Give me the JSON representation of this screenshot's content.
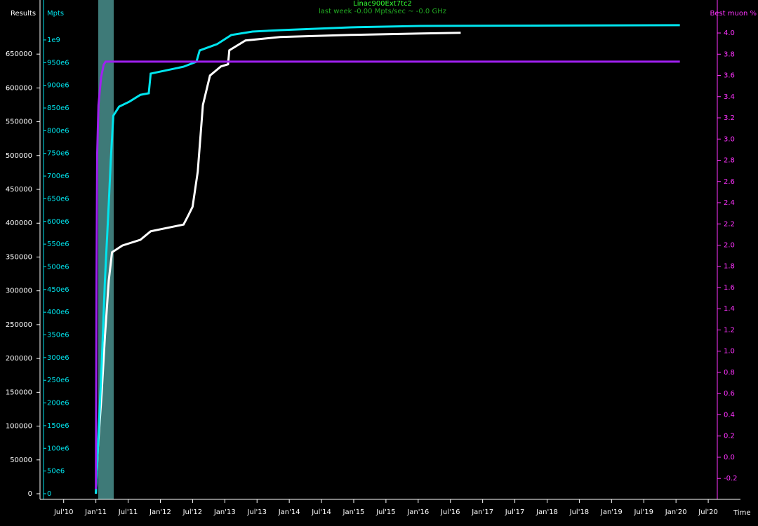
{
  "chart_data": {
    "type": "line",
    "title": "Linac900Ext7tc2",
    "subtitle": "last week -0.00 Mpts/sec ~ -0.0 GHz",
    "x_label": "Time",
    "y_label": "Results",
    "y2_label": "Mpts",
    "y3_label": "Best muon %",
    "xlim": [
      2010.22,
      2021.0
    ],
    "xticks": [
      {
        "value": 2010.5,
        "label": "Jul'10"
      },
      {
        "value": 2011.0,
        "label": "Jan'11"
      },
      {
        "value": 2011.5,
        "label": "Jul'11"
      },
      {
        "value": 2012.0,
        "label": "Jan'12"
      },
      {
        "value": 2012.5,
        "label": "Jul'12"
      },
      {
        "value": 2013.0,
        "label": "Jan'13"
      },
      {
        "value": 2013.5,
        "label": "Jul'13"
      },
      {
        "value": 2014.0,
        "label": "Jan'14"
      },
      {
        "value": 2014.5,
        "label": "Jul'14"
      },
      {
        "value": 2015.0,
        "label": "Jan'15"
      },
      {
        "value": 2015.5,
        "label": "Jul'15"
      },
      {
        "value": 2016.0,
        "label": "Jan'16"
      },
      {
        "value": 2016.5,
        "label": "Jul'16"
      },
      {
        "value": 2017.0,
        "label": "Jan'17"
      },
      {
        "value": 2017.5,
        "label": "Jul'17"
      },
      {
        "value": 2018.0,
        "label": "Jan'18"
      },
      {
        "value": 2018.5,
        "label": "Jul'18"
      },
      {
        "value": 2019.0,
        "label": "Jan'19"
      },
      {
        "value": 2019.5,
        "label": "Jul'19"
      },
      {
        "value": 2020.0,
        "label": "Jan'20"
      },
      {
        "value": 2020.5,
        "label": "Jul'20"
      }
    ],
    "ylim": [
      -8300,
      730000
    ],
    "yticks": [
      0,
      50000,
      100000,
      150000,
      200000,
      250000,
      300000,
      350000,
      400000,
      450000,
      500000,
      550000,
      600000,
      650000
    ],
    "y2lim": [
      -12400000,
      1088000000
    ],
    "y2ticks": [
      0,
      {
        "value": 50000000,
        "label": "50e6"
      },
      {
        "value": 100000000,
        "label": "100e6"
      },
      {
        "value": 150000000,
        "label": "150e6"
      },
      {
        "value": 200000000,
        "label": "200e6"
      },
      {
        "value": 250000000,
        "label": "250e6"
      },
      {
        "value": 300000000,
        "label": "300e6"
      },
      {
        "value": 350000000,
        "label": "350e6"
      },
      {
        "value": 400000000,
        "label": "400e6"
      },
      {
        "value": 450000000,
        "label": "450e6"
      },
      {
        "value": 500000000,
        "label": "500e6"
      },
      {
        "value": 550000000,
        "label": "550e6"
      },
      {
        "value": 600000000,
        "label": "600e6"
      },
      {
        "value": 650000000,
        "label": "650e6"
      },
      {
        "value": 700000000,
        "label": "700e6"
      },
      {
        "value": 750000000,
        "label": "750e6"
      },
      {
        "value": 800000000,
        "label": "800e6"
      },
      {
        "value": 850000000,
        "label": "850e6"
      },
      {
        "value": 900000000,
        "label": "900e6"
      },
      {
        "value": 950000000,
        "label": "950e6"
      },
      {
        "value": 1000000000,
        "label": "1e9"
      }
    ],
    "y3lim": [
      -0.397,
      4.311
    ],
    "y3ticks": [
      -0.2,
      {
        "value": 0,
        "label": "0.0"
      },
      0.2,
      0.4,
      0.6,
      0.8,
      {
        "value": 1,
        "label": "1.0"
      },
      1.2,
      1.4,
      1.6,
      1.8,
      {
        "value": 2,
        "label": "2.0"
      },
      2.2,
      2.4,
      2.6,
      2.8,
      {
        "value": 3,
        "label": "3.0"
      },
      3.2,
      3.4,
      3.6,
      3.8,
      {
        "value": 4,
        "label": "4.0"
      }
    ],
    "series": [
      {
        "name": "Results",
        "color": "#ffffff",
        "axis": "y",
        "x": [
          2011.0,
          2011.03,
          2011.09,
          2011.14,
          2011.2,
          2011.25,
          2011.41,
          2011.69,
          2011.85,
          2012.36,
          2012.43,
          2012.5,
          2012.58,
          2012.66,
          2012.77,
          2012.94,
          2013.05,
          2013.07,
          2013.32,
          2013.86,
          2014.95,
          2016.04,
          2016.66
        ],
        "values": [
          0,
          66400,
          149400,
          232400,
          315400,
          357000,
          367000,
          375500,
          388000,
          398000,
          410800,
          424300,
          476000,
          574700,
          618300,
          631800,
          634900,
          655600,
          670100,
          675300,
          678400,
          680500,
          681500
        ]
      },
      {
        "name": "Mpts",
        "color": "#00e5ee",
        "axis": "y2",
        "x": [
          2011.0,
          2011.03,
          2011.09,
          2011.14,
          2011.2,
          2011.23,
          2011.27,
          2011.36,
          2011.52,
          2011.69,
          2011.82,
          2011.85,
          2012.36,
          2012.56,
          2012.61,
          2012.88,
          2013.1,
          2013.43,
          2013.86,
          2014.95,
          2016.04,
          2020.06
        ],
        "values": [
          0,
          98900000,
          284000000,
          470000000,
          640000000,
          732600000,
          833000000,
          853000000,
          864000000,
          879000000,
          882500000,
          925800000,
          941000000,
          952000000,
          976800000,
          990700000,
          1010800000,
          1018500000,
          1021600000,
          1027800000,
          1030900000,
          1032500000
        ]
      },
      {
        "name": "Best muon %",
        "color": "#a020f0",
        "axis": "y3",
        "x": [
          2011.0,
          2011.01,
          2011.02,
          2011.04,
          2011.08,
          2011.12,
          2011.15,
          2020.06
        ],
        "values": [
          -0.3,
          1.67,
          2.86,
          3.32,
          3.58,
          3.7,
          3.73,
          3.73
        ]
      }
    ]
  }
}
